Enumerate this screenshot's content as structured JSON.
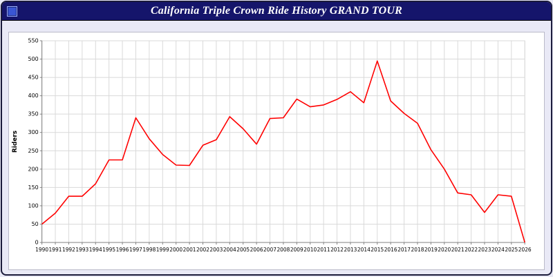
{
  "window": {
    "title": "California Triple Crown Ride History GRAND TOUR",
    "icon": "app-icon"
  },
  "colors": {
    "titlebar_bg": "#15156b",
    "title_text": "#ffffff",
    "page_bg": "#e9e9f6",
    "plot_bg": "#ffffff",
    "gridline": "#d9d9d9",
    "axis": "#808080",
    "line": "#ff0000"
  },
  "chart_data": {
    "type": "line",
    "title": "California Triple Crown Ride History GRAND TOUR",
    "xlabel": "",
    "ylabel": "Riders",
    "ylim": [
      0,
      550
    ],
    "ytick_step": 50,
    "grid": true,
    "legend": "none",
    "line_color": "#ff0000",
    "x": [
      1990,
      1991,
      1992,
      1993,
      1994,
      1995,
      1996,
      1997,
      1998,
      1999,
      2000,
      2001,
      2002,
      2003,
      2004,
      2005,
      2006,
      2007,
      2008,
      2009,
      2010,
      2011,
      2012,
      2013,
      2014,
      2015,
      2016,
      2017,
      2018,
      2019,
      2020,
      2021,
      2022,
      2023,
      2024,
      2025,
      2026
    ],
    "values": [
      50,
      80,
      126,
      126,
      160,
      225,
      225,
      340,
      283,
      240,
      211,
      210,
      265,
      280,
      343,
      310,
      268,
      338,
      340,
      391,
      370,
      375,
      390,
      411,
      381,
      495,
      386,
      352,
      325,
      253,
      200,
      135,
      130,
      82,
      130,
      126,
      0
    ]
  }
}
